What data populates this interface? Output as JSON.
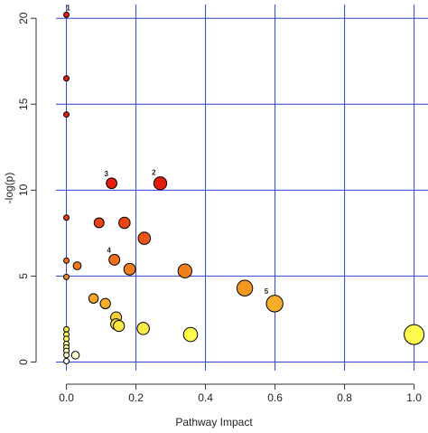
{
  "chart_data": {
    "type": "scatter",
    "xlabel": "Pathway Impact",
    "ylabel": "-log(p)",
    "xlim": [
      -0.03,
      1.04
    ],
    "ylim": [
      -0.5,
      20.8
    ],
    "xticks": [
      {
        "value": 0,
        "label": "0.0"
      },
      {
        "value": 0.2,
        "label": "0.2"
      },
      {
        "value": 0.4,
        "label": "0.4"
      },
      {
        "value": 0.6,
        "label": "0.6"
      },
      {
        "value": 0.8,
        "label": "0.8"
      },
      {
        "value": 1,
        "label": "1.0"
      }
    ],
    "yticks": [
      0,
      5,
      10,
      15,
      20
    ],
    "grid": true,
    "grid_color": "#3344cc",
    "series": [
      {
        "x": [
          0,
          0,
          0,
          0.13,
          0.27,
          0,
          0.094,
          0.167,
          0.224,
          0.138,
          0,
          0.031,
          0.182,
          0.341,
          0,
          0.513,
          0.599,
          0.078,
          0.112,
          0.143,
          0.143,
          0.151,
          0.221,
          0.357,
          1.0,
          0,
          0,
          0,
          0,
          0,
          0,
          0,
          0,
          0.026
        ],
        "values": [
          20.2,
          16.5,
          14.4,
          10.4,
          10.4,
          8.4,
          8.1,
          8.1,
          7.2,
          5.95,
          5.9,
          5.6,
          5.4,
          5.3,
          4.95,
          4.3,
          3.4,
          3.7,
          3.4,
          2.6,
          2.2,
          2.1,
          1.95,
          1.6,
          1.6,
          1.9,
          1.6,
          1.35,
          1.05,
          0.85,
          0.65,
          0.4,
          0.05,
          0.4
        ],
        "labels": [
          "1",
          null,
          null,
          "3",
          "2",
          null,
          null,
          null,
          null,
          "4",
          null,
          null,
          null,
          null,
          null,
          null,
          "5",
          null,
          null,
          null,
          null,
          null,
          null,
          null,
          null,
          null,
          null,
          null,
          null,
          null,
          null,
          null,
          null,
          null
        ]
      }
    ]
  }
}
